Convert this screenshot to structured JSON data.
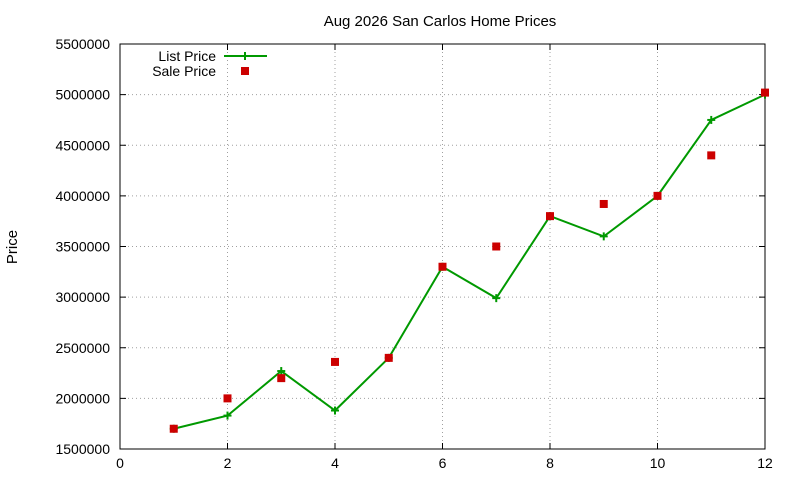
{
  "chart_data": {
    "type": "line",
    "title": "Aug 2026 San Carlos Home Prices",
    "xlabel": "",
    "ylabel": "Price",
    "xlim": [
      0,
      12
    ],
    "ylim": [
      1500000,
      5500000
    ],
    "x_ticks": [
      0,
      2,
      4,
      6,
      8,
      10,
      12
    ],
    "y_ticks": [
      1500000,
      2000000,
      2500000,
      3000000,
      3500000,
      4000000,
      4500000,
      5000000,
      5500000
    ],
    "x_tick_labels": [
      "0",
      "2",
      "4",
      "6",
      "8",
      "10",
      "12"
    ],
    "y_tick_labels": [
      "1500000",
      "2000000",
      "2500000",
      "3000000",
      "3500000",
      "4000000",
      "4500000",
      "5000000",
      "5500000"
    ],
    "grid": true,
    "legend_position": "top-left",
    "x": [
      1,
      2,
      3,
      4,
      5,
      6,
      7,
      8,
      9,
      10,
      11,
      12
    ],
    "series": [
      {
        "name": "List Price",
        "style": "line-with-plus-markers",
        "color": "#009900",
        "values": [
          1700000,
          1830000,
          2270000,
          1880000,
          2400000,
          3300000,
          2990000,
          3800000,
          3600000,
          4000000,
          4750000,
          5000000
        ]
      },
      {
        "name": "Sale Price",
        "style": "square-markers",
        "color": "#cc0000",
        "values": [
          1700000,
          2000000,
          2200000,
          2360000,
          2400000,
          3300000,
          3500000,
          3800000,
          3920000,
          4000000,
          4400000,
          5020000
        ]
      }
    ]
  }
}
